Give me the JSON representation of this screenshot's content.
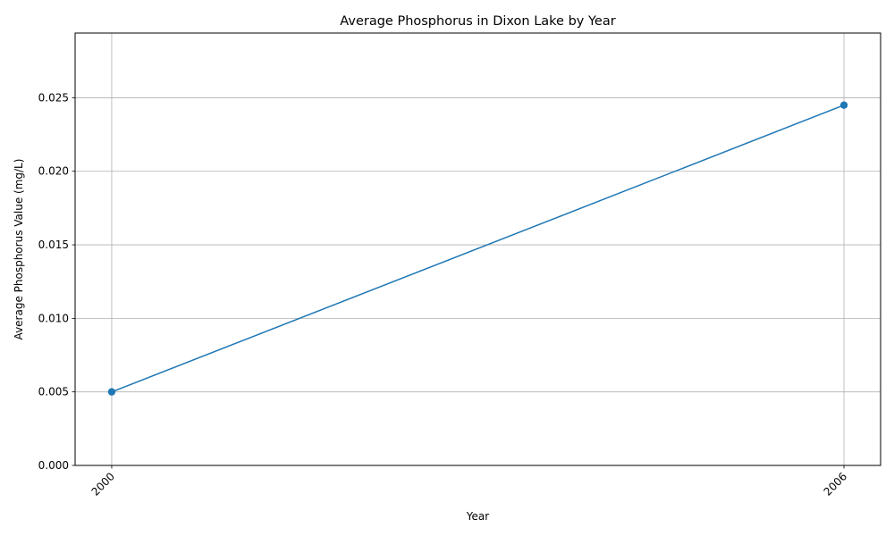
{
  "chart_data": {
    "type": "line",
    "title": "Average Phosphorus in Dixon Lake by Year",
    "xlabel": "Year",
    "ylabel": "Average Phosphorus Value (mg/L)",
    "x": [
      2000,
      2006
    ],
    "x_tick_labels": [
      "2000",
      "2006"
    ],
    "series": [
      {
        "values": [
          0.005,
          0.0245
        ],
        "color": "#1f77b4",
        "marker": "circle"
      }
    ],
    "xlim": [
      1999.7,
      2006.3
    ],
    "ylim": [
      0,
      0.0294
    ],
    "y_ticks": [
      0.0,
      0.005,
      0.01,
      0.015,
      0.02,
      0.025
    ],
    "y_tick_labels": [
      "0.000",
      "0.005",
      "0.010",
      "0.015",
      "0.020",
      "0.025"
    ],
    "grid": true,
    "legend": "none"
  }
}
